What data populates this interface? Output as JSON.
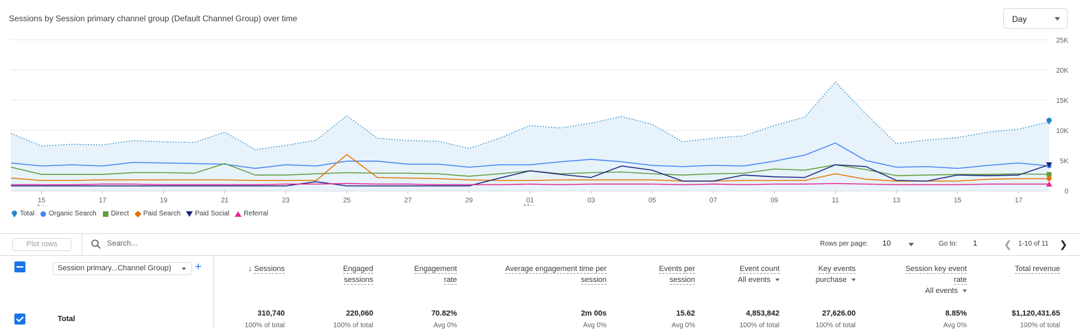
{
  "header": {
    "title": "Sessions by Session primary channel group (Default Channel Group) over time",
    "period_select": "Day"
  },
  "chart_data": {
    "type": "line",
    "x": [
      "Apr 14",
      "Apr 15",
      "Apr 16",
      "Apr 17",
      "Apr 18",
      "Apr 19",
      "Apr 20",
      "Apr 21",
      "Apr 22",
      "Apr 23",
      "Apr 24",
      "Apr 25",
      "Apr 26",
      "Apr 27",
      "Apr 28",
      "Apr 29",
      "Apr 30",
      "May 01",
      "May 02",
      "May 03",
      "May 04",
      "May 05",
      "May 06",
      "May 07",
      "May 08",
      "May 09",
      "May 10",
      "May 11",
      "May 12",
      "May 13",
      "May 14",
      "May 15",
      "May 16",
      "May 17",
      "May 18"
    ],
    "x_tick_labels": [
      "15",
      "17",
      "19",
      "21",
      "23",
      "25",
      "27",
      "29",
      "01",
      "03",
      "05",
      "07",
      "09",
      "11",
      "13",
      "15",
      "17"
    ],
    "x_tick_month_labels": {
      "0": "Apr",
      "8": "May"
    },
    "y_tick_labels": [
      "25K",
      "20K",
      "15K",
      "10K",
      "5K",
      "0"
    ],
    "ylim": [
      0,
      25000
    ],
    "grid": true,
    "legend_position": "bottom-left",
    "series": [
      {
        "name": "Total",
        "color": "#1e88c7",
        "style": "dotted-area",
        "values": [
          9500,
          7400,
          7700,
          7600,
          8300,
          8100,
          8000,
          9700,
          6800,
          7500,
          8400,
          12400,
          8700,
          8300,
          8200,
          7000,
          8700,
          10800,
          10400,
          11200,
          12300,
          11000,
          8100,
          8700,
          9100,
          10800,
          12200,
          18000,
          12700,
          7800,
          8400,
          8800,
          9700,
          10200,
          11400
        ]
      },
      {
        "name": "Organic Search",
        "color": "#4285f4",
        "values": [
          4600,
          4100,
          4300,
          4100,
          4700,
          4600,
          4500,
          4400,
          3700,
          4300,
          4100,
          4900,
          4900,
          4400,
          4400,
          3900,
          4300,
          4300,
          4800,
          5200,
          4800,
          4200,
          4000,
          4200,
          4100,
          4900,
          5900,
          7900,
          5000,
          3900,
          4000,
          3700,
          4200,
          4600,
          4100
        ]
      },
      {
        "name": "Direct",
        "color": "#5e9e3a",
        "values": [
          3900,
          2700,
          2700,
          2700,
          3000,
          3000,
          2900,
          4500,
          2600,
          2600,
          2800,
          3000,
          2900,
          2900,
          2800,
          2400,
          2800,
          3300,
          2800,
          3000,
          3100,
          2800,
          2600,
          2800,
          2900,
          3600,
          3400,
          4300,
          3500,
          2500,
          2600,
          2700,
          2700,
          2800,
          2700
        ]
      },
      {
        "name": "Paid Search",
        "color": "#e37400",
        "values": [
          2100,
          1700,
          1700,
          1800,
          1800,
          1800,
          1800,
          1800,
          1700,
          1700,
          1700,
          6000,
          2200,
          2100,
          2000,
          1800,
          1700,
          1700,
          1800,
          1800,
          1800,
          1800,
          1600,
          1600,
          1700,
          1700,
          1700,
          2800,
          1900,
          1600,
          1600,
          1600,
          1900,
          2000,
          2000
        ]
      },
      {
        "name": "Paid Social",
        "color": "#1a237e",
        "values": [
          800,
          800,
          800,
          800,
          800,
          800,
          800,
          800,
          800,
          800,
          1500,
          800,
          800,
          800,
          800,
          800,
          2100,
          3300,
          2700,
          2200,
          4100,
          3400,
          1600,
          1600,
          2600,
          2300,
          2200,
          4300,
          4000,
          1700,
          1600,
          2600,
          2500,
          2600,
          4300
        ]
      },
      {
        "name": "Referral",
        "color": "#e52592",
        "values": [
          1000,
          1000,
          1000,
          1100,
          1100,
          1000,
          1000,
          1000,
          1000,
          1100,
          1100,
          1200,
          1100,
          1100,
          1000,
          1000,
          1000,
          1100,
          1000,
          1100,
          1100,
          1100,
          1000,
          1100,
          1000,
          1100,
          1100,
          1200,
          1100,
          1000,
          1000,
          1000,
          1100,
          1100,
          1100
        ]
      }
    ]
  },
  "table": {
    "plot_rows_label": "Plot rows",
    "search_placeholder": "Search...",
    "rows_per_page_label": "Rows per page:",
    "rows_per_page_value": "10",
    "goto_label": "Go to:",
    "goto_value": "1",
    "page_range": "1-10 of 11",
    "dimension_select": "Session primary...Channel Group)",
    "columns": [
      {
        "line1": "Sessions",
        "line2": "",
        "sub": ""
      },
      {
        "line1": "Engaged",
        "line2": "sessions",
        "sub": ""
      },
      {
        "line1": "Engagement",
        "line2": "rate",
        "sub": ""
      },
      {
        "line1": "Average engagement time per",
        "line2": "session",
        "sub": ""
      },
      {
        "line1": "Events per",
        "line2": "session",
        "sub": ""
      },
      {
        "line1": "Event count",
        "line2": "",
        "sub": "All events"
      },
      {
        "line1": "Key events",
        "line2": "",
        "sub": "purchase"
      },
      {
        "line1": "Session key event",
        "line2": "rate",
        "sub": "All events"
      },
      {
        "line1": "Total revenue",
        "line2": "",
        "sub": ""
      }
    ],
    "total_row": {
      "label": "Total",
      "values": [
        "310,740",
        "220,060",
        "70.82%",
        "2m 00s",
        "15.62",
        "4,853,842",
        "27,626.00",
        "8.85%",
        "$1,120,431.65"
      ],
      "subs": [
        "100% of total",
        "100% of total",
        "Avg 0%",
        "Avg 0%",
        "Avg 0%",
        "100% of total",
        "100% of total",
        "Avg 0%",
        "100% of total"
      ]
    }
  }
}
